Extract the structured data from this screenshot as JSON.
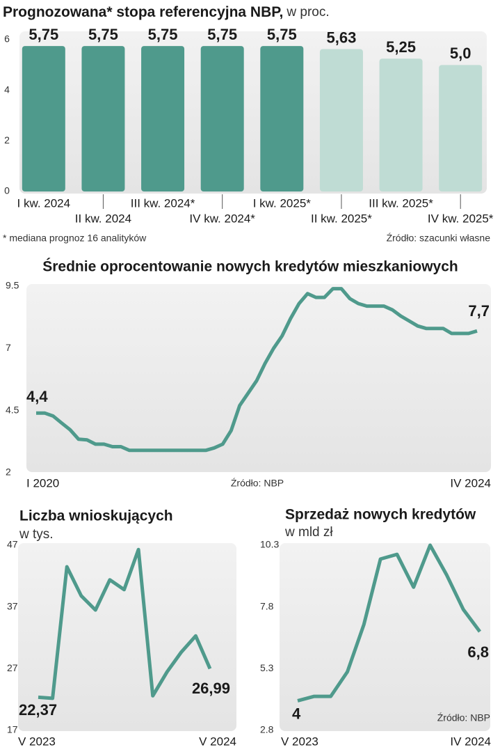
{
  "chart_data": [
    {
      "type": "bar",
      "title": "Prognozowana* stopa referencyjna NBP,",
      "subtitle": "w proc.",
      "categories": [
        "I kw. 2024",
        "II kw. 2024",
        "III kw. 2024*",
        "IV kw. 2024*",
        "I kw. 2025*",
        "II kw. 2025*",
        "III kw. 2025*",
        "IV kw. 2025*"
      ],
      "values": [
        5.75,
        5.75,
        5.75,
        5.75,
        5.75,
        5.63,
        5.25,
        5.0
      ],
      "value_labels": [
        "5,75",
        "5,75",
        "5,75",
        "5,75",
        "5,75",
        "5,63",
        "5,25",
        "5,0"
      ],
      "colors": [
        "#4f9a8c",
        "#4f9a8c",
        "#4f9a8c",
        "#4f9a8c",
        "#4f9a8c",
        "#bfdcd4",
        "#bfdcd4",
        "#bfdcd4"
      ],
      "ylim": [
        0,
        6
      ],
      "yticks": [
        0,
        2,
        4,
        6
      ],
      "footnote": "* mediana prognoz 16 analityków",
      "source": "Źródło: szacunki własne"
    },
    {
      "type": "line",
      "title": "Średnie oprocentowanie nowych kredytów mieszkaniowych",
      "categories": [
        "I 2020",
        null,
        null,
        null,
        null,
        null,
        null,
        null,
        null,
        null,
        null,
        null,
        null,
        null,
        null,
        null,
        null,
        null,
        null,
        null,
        null,
        null,
        null,
        null,
        null,
        null,
        null,
        null,
        null,
        null,
        null,
        null,
        null,
        null,
        null,
        null,
        null,
        null,
        null,
        null,
        null,
        null,
        null,
        null,
        null,
        null,
        null,
        null,
        null,
        null,
        null,
        null,
        "IV 2024"
      ],
      "series": [
        {
          "color": "#4f9a8c",
          "values": [
            4.4,
            4.4,
            4.28,
            4.0,
            3.73,
            3.35,
            3.32,
            3.15,
            3.15,
            3.05,
            3.05,
            2.9,
            2.9,
            2.9,
            2.9,
            2.9,
            2.9,
            2.9,
            2.9,
            2.9,
            2.9,
            3.0,
            3.15,
            3.7,
            4.7,
            5.2,
            5.7,
            6.4,
            7.0,
            7.5,
            8.2,
            8.8,
            9.2,
            9.05,
            9.05,
            9.4,
            9.4,
            9.0,
            8.8,
            8.7,
            8.7,
            8.7,
            8.55,
            8.3,
            8.1,
            7.9,
            7.8,
            7.8,
            7.8,
            7.6,
            7.6,
            7.6,
            7.7
          ],
          "value_labels": [
            "4,4",
            null,
            null,
            null,
            null,
            null,
            null,
            null,
            null,
            null,
            null,
            null,
            null,
            null,
            null,
            null,
            null,
            null,
            null,
            null,
            null,
            null,
            null,
            null,
            null,
            null,
            null,
            null,
            null,
            null,
            null,
            null,
            null,
            null,
            null,
            null,
            null,
            null,
            null,
            null,
            null,
            null,
            null,
            null,
            null,
            null,
            null,
            null,
            null,
            null,
            null,
            null,
            "7,7"
          ]
        }
      ],
      "ylim": [
        2,
        9.5
      ],
      "yticks": [
        2,
        4.5,
        7,
        9.5
      ],
      "source": "Źródło: NBP"
    },
    {
      "type": "line",
      "title": "Liczba wnioskujących",
      "subtitle": "w tys.",
      "categories": [
        "V 2023",
        null,
        null,
        null,
        null,
        null,
        null,
        null,
        null,
        null,
        null,
        null,
        "V 2024"
      ],
      "series": [
        {
          "color": "#4f9a8c",
          "values": [
            22.37,
            22.2,
            43.5,
            38.8,
            36.5,
            41.4,
            39.8,
            46.3,
            22.6,
            26.5,
            29.7,
            32.3,
            26.99
          ],
          "value_labels": [
            "22,37",
            null,
            null,
            null,
            null,
            null,
            null,
            null,
            null,
            null,
            null,
            null,
            "26,99"
          ]
        }
      ],
      "ylim": [
        17,
        47
      ],
      "yticks": [
        17,
        27,
        37,
        47
      ]
    },
    {
      "type": "line",
      "title": "Sprzedaż nowych kredytów",
      "subtitle": "w mld zł",
      "categories": [
        "V 2023",
        null,
        null,
        null,
        null,
        null,
        null,
        null,
        null,
        null,
        null,
        "IV 2024"
      ],
      "series": [
        {
          "color": "#4f9a8c",
          "values": [
            4,
            4.18,
            4.18,
            5.17,
            7.09,
            9.74,
            9.93,
            8.6,
            10.3,
            9.09,
            7.7,
            6.8
          ],
          "value_labels": [
            "4",
            null,
            null,
            null,
            null,
            null,
            null,
            null,
            null,
            null,
            null,
            "6,8"
          ]
        }
      ],
      "ylim": [
        2.8,
        10.3
      ],
      "yticks": [
        2.8,
        5.3,
        7.8,
        10.3
      ],
      "source": "Źródło: NBP"
    }
  ]
}
